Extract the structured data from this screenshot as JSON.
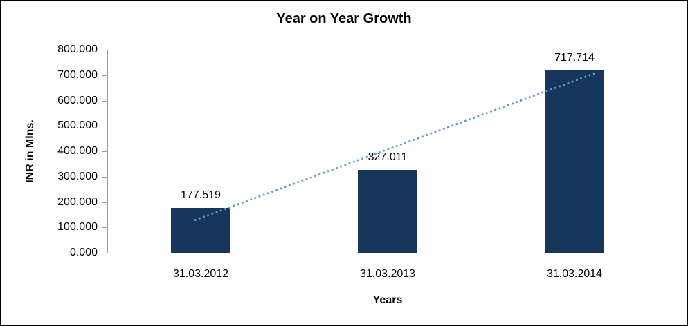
{
  "chart_data": {
    "type": "bar",
    "title": "Year on Year Growth",
    "xlabel": "Years",
    "ylabel": "INR in Mlns.",
    "categories": [
      "31.03.2012",
      "31.03.2013",
      "31.03.2014"
    ],
    "values": [
      177.519,
      327.011,
      717.714
    ],
    "value_labels": [
      "177.519",
      "327.011",
      "717.714"
    ],
    "ylim": [
      0,
      800
    ],
    "y_ticks": [
      0,
      100,
      200,
      300,
      400,
      500,
      600,
      700,
      800
    ],
    "y_tick_labels": [
      "0.000",
      "100.000",
      "200.000",
      "300.000",
      "400.000",
      "500.000",
      "600.000",
      "700.000",
      "800.000"
    ],
    "grid": false,
    "legend": "none",
    "trendline": {
      "type": "linear",
      "style": "dotted"
    },
    "colors": {
      "bar": "#16365C",
      "trendline": "#5B9BD5",
      "axis": "#9c9c9c",
      "text": "#000000",
      "frame_border": "#000000"
    }
  }
}
